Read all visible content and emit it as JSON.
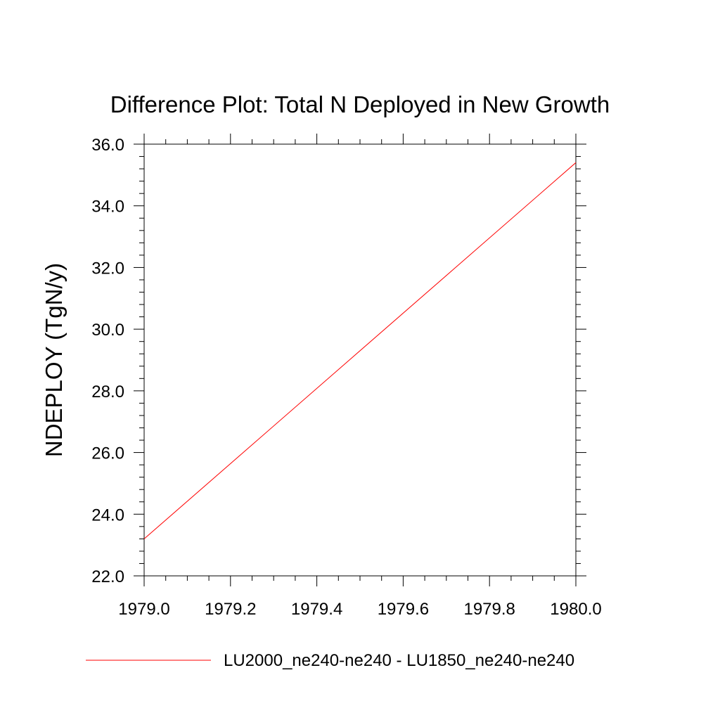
{
  "chart_data": {
    "type": "line",
    "title": "Difference Plot: Total N Deployed in New Growth",
    "xlabel": "",
    "ylabel": "NDEPLOY  (TgN/y)",
    "xlim": [
      1979.0,
      1980.0
    ],
    "ylim": [
      22.0,
      36.0
    ],
    "x_ticks": [
      "1979.0",
      "1979.2",
      "1979.4",
      "1979.6",
      "1979.8",
      "1980.0"
    ],
    "x_tick_values": [
      1979.0,
      1979.2,
      1979.4,
      1979.6,
      1979.8,
      1980.0
    ],
    "y_ticks": [
      "22.0",
      "24.0",
      "26.0",
      "28.0",
      "30.0",
      "32.0",
      "34.0",
      "36.0"
    ],
    "y_tick_values": [
      22.0,
      24.0,
      26.0,
      28.0,
      30.0,
      32.0,
      34.0,
      36.0
    ],
    "grid": false,
    "legend_position": "bottom",
    "series": [
      {
        "name": "LU2000_ne240-ne240 - LU1850_ne240-ne240",
        "color": "#ff0000",
        "x": [
          1979.0,
          1980.0
        ],
        "y": [
          23.2,
          35.4
        ]
      }
    ]
  }
}
